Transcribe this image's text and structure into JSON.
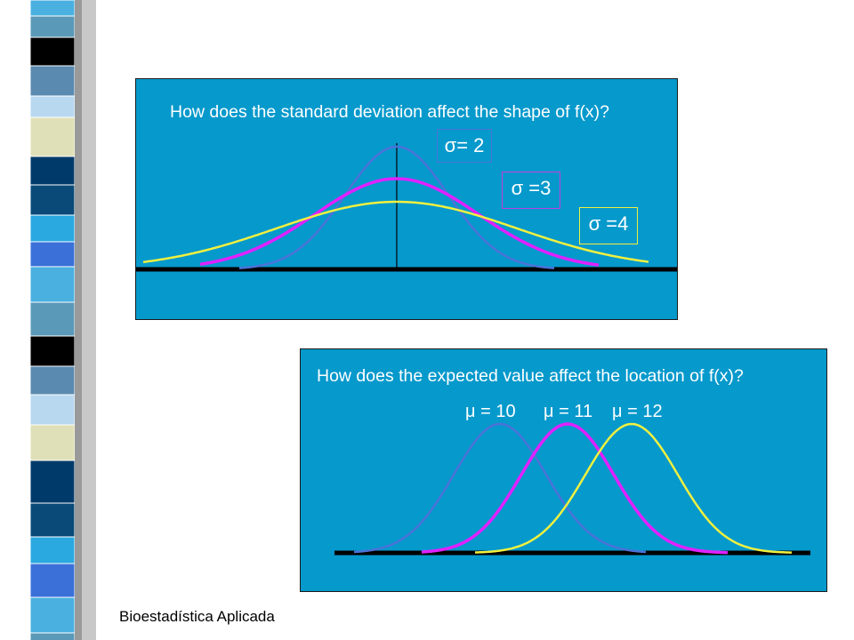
{
  "top_panel": {
    "title": "How does the standard deviation affect the shape of f(x)?",
    "labels": [
      {
        "symbol": "σ",
        "text": "= 2",
        "color": "#4a72d8"
      },
      {
        "symbol": "σ",
        "text": " =3",
        "color": "#c040e0"
      },
      {
        "symbol": "σ",
        "text": " =4",
        "color": "#f0f040"
      }
    ]
  },
  "bottom_panel": {
    "title": "How does the expected value affect the location of f(x)?",
    "labels": [
      {
        "symbol": "μ",
        "text": " = 10",
        "color": "#4a72d8"
      },
      {
        "symbol": "μ",
        "text": " = 11",
        "color": "#e020ff"
      },
      {
        "symbol": "μ",
        "text": " = 12",
        "color": "#f0f040"
      }
    ]
  },
  "colors": {
    "panel_bg": "#0699cc",
    "blue_curve": "#4a72d8",
    "magenta_curve": "#e020ff",
    "yellow_curve": "#f0f040"
  },
  "footer": {
    "text": "Bioestadística Aplicada"
  }
}
